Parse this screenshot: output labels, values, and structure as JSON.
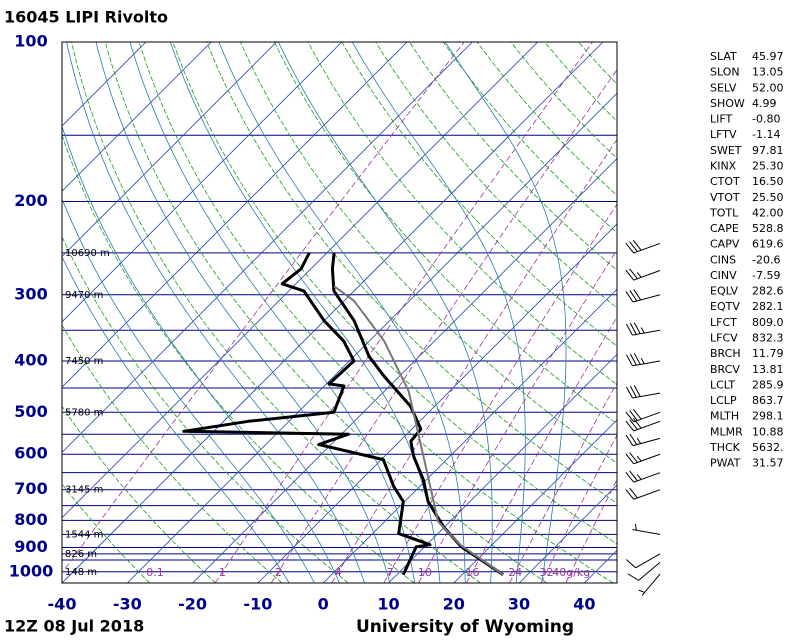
{
  "chart_data": {
    "type": "skewt",
    "title": "16045 LIPI Rivolto",
    "footer_left": "12Z 08 Jul 2018",
    "footer_right": "University of Wyoming",
    "log_y": true,
    "ylim": [
      1050,
      100
    ],
    "yticks": [
      100,
      200,
      300,
      400,
      500,
      600,
      700,
      800,
      900,
      1000
    ],
    "minor_yticks": [
      150,
      250,
      350,
      450,
      550,
      650,
      750,
      850,
      925,
      950
    ],
    "xlim": [
      -40,
      45
    ],
    "xticks": [
      -40,
      -30,
      -20,
      -10,
      0,
      10,
      20,
      30,
      40
    ],
    "isotherms": [
      -110,
      -100,
      -90,
      -80,
      -70,
      -60,
      -50,
      -40,
      -30,
      -20,
      -10,
      0,
      10,
      20,
      30,
      40
    ],
    "dry_adiabats": [
      -30,
      -20,
      -10,
      0,
      10,
      20,
      30,
      40,
      50,
      60,
      70,
      80,
      90,
      100,
      110,
      120,
      130,
      140,
      150,
      160,
      170
    ],
    "moist_adiabats": [
      -8,
      -4,
      0,
      4,
      8,
      12,
      16,
      20,
      24,
      28,
      32
    ],
    "mixing_ratios": [
      0.1,
      1,
      2,
      4,
      7,
      10,
      16,
      24,
      32,
      {
        "value": 40,
        "label": "40g/kg"
      }
    ],
    "height_labels": [
      {
        "pressure": 250,
        "value": 10690,
        "label": "10690 m"
      },
      {
        "pressure": 300,
        "value": 9470,
        "label": "9470 m"
      },
      {
        "pressure": 400,
        "value": 7450,
        "label": "7450 m"
      },
      {
        "pressure": 500,
        "value": 5780,
        "label": "5780 m"
      },
      {
        "pressure": 700,
        "value": 3145,
        "label": "3145 m"
      },
      {
        "pressure": 850,
        "value": 1544,
        "label": "1544 m"
      },
      {
        "pressure": 925,
        "value": 826,
        "label": "826 m"
      },
      {
        "pressure": 1000,
        "value": 148,
        "label": "148 m"
      }
    ],
    "series": [
      {
        "color": "#000000",
        "pressure": [
          1013,
          897,
          822,
          737,
          670,
          606,
          567,
          538,
          487,
          427,
          392,
          336,
          295,
          268,
          250
        ],
        "values": [
          26.3,
          15.6,
          9.8,
          3.6,
          -0.5,
          -5.5,
          -8.3,
          -8.6,
          -13.7,
          -22.4,
          -27.7,
          -35.4,
          -43.1,
          -46.7,
          -48.9
        ]
      },
      {
        "color": "#000000",
        "pressure": [
          1013,
          897,
          889,
          847,
          737,
          690,
          614,
          575,
          550,
          543,
          520,
          500,
          446,
          442,
          400,
          367,
          336,
          295,
          286,
          268,
          250
        ],
        "values": [
          11.0,
          8.7,
          10.5,
          4.0,
          -0.2,
          -4.0,
          -9.7,
          -21.9,
          -18.9,
          -44.6,
          -36.2,
          -24.5,
          -27.0,
          -29.6,
          -29.3,
          -33.9,
          -40.0,
          -47.7,
          -52.1,
          -51.5,
          -52.7
        ]
      },
      {
        "color": "#777777",
        "pressure": [
          1013,
          889,
          804,
          606,
          456,
          367,
          308,
          289
        ],
        "values": [
          26.3,
          15.1,
          8.2,
          -4.0,
          -16.3,
          -27.7,
          -38.5,
          -43.8
        ]
      }
    ],
    "wind": [
      {
        "pressure": 1010,
        "direction": 220,
        "speed": 5
      },
      {
        "pressure": 960,
        "direction": 230,
        "speed": 10
      },
      {
        "pressure": 925,
        "direction": 240,
        "speed": 10
      },
      {
        "pressure": 850,
        "direction": 280,
        "speed": 5
      },
      {
        "pressure": 700,
        "direction": 250,
        "speed": 20
      },
      {
        "pressure": 650,
        "direction": 250,
        "speed": 25
      },
      {
        "pressure": 600,
        "direction": 250,
        "speed": 25
      },
      {
        "pressure": 560,
        "direction": 255,
        "speed": 25
      },
      {
        "pressure": 520,
        "direction": 250,
        "speed": 30
      },
      {
        "pressure": 500,
        "direction": 250,
        "speed": 30
      },
      {
        "pressure": 460,
        "direction": 260,
        "speed": 30
      },
      {
        "pressure": 400,
        "direction": 260,
        "speed": 35
      },
      {
        "pressure": 350,
        "direction": 260,
        "speed": 35
      },
      {
        "pressure": 300,
        "direction": 255,
        "speed": 30
      },
      {
        "pressure": 270,
        "direction": 250,
        "speed": 25
      },
      {
        "pressure": 240,
        "direction": 250,
        "speed": 30
      }
    ]
  },
  "indices": [
    {
      "name": "SLAT",
      "value": "45.97"
    },
    {
      "name": "SLON",
      "value": "13.05"
    },
    {
      "name": "SELV",
      "value": "52.00"
    },
    {
      "name": "SHOW",
      "value": "4.99"
    },
    {
      "name": "LIFT",
      "value": "-0.80"
    },
    {
      "name": "LFTV",
      "value": "-1.14"
    },
    {
      "name": "SWET",
      "value": "97.81"
    },
    {
      "name": "KINX",
      "value": "25.30"
    },
    {
      "name": "CTOT",
      "value": "16.50"
    },
    {
      "name": "VTOT",
      "value": "25.50"
    },
    {
      "name": "TOTL",
      "value": "42.00"
    },
    {
      "name": "CAPE",
      "value": "528.8"
    },
    {
      "name": "CAPV",
      "value": "619.6"
    },
    {
      "name": "CINS",
      "value": "-20.6"
    },
    {
      "name": "CINV",
      "value": "-7.59"
    },
    {
      "name": "EQLV",
      "value": "282.6"
    },
    {
      "name": "EQTV",
      "value": "282.1"
    },
    {
      "name": "LFCT",
      "value": "809.0"
    },
    {
      "name": "LFCV",
      "value": "832.3"
    },
    {
      "name": "BRCH",
      "value": "11.79"
    },
    {
      "name": "BRCV",
      "value": "13.81"
    },
    {
      "name": "LCLT",
      "value": "285.9"
    },
    {
      "name": "LCLP",
      "value": "863.7"
    },
    {
      "name": "MLTH",
      "value": "298.1"
    },
    {
      "name": "MLMR",
      "value": "10.88"
    },
    {
      "name": "THCK",
      "value": "5632."
    },
    {
      "name": "PWAT",
      "value": "31.57"
    }
  ]
}
